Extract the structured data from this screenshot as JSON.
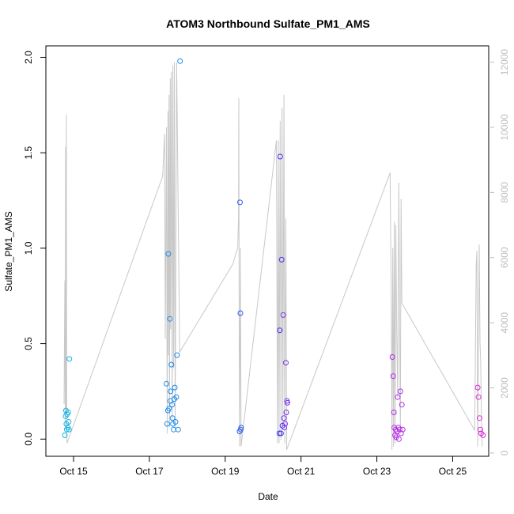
{
  "chart_data": {
    "type": "scatter",
    "title": "ATOM3 Northbound Sulfate_PM1_AMS",
    "xlabel": "Date",
    "ylabel": "Sulfate_PM1_AMS",
    "x_ticks": [
      "Oct 15",
      "Oct 17",
      "Oct 19",
      "Oct 21",
      "Oct 23",
      "Oct 25"
    ],
    "y_ticks": [
      "0.0",
      "0.5",
      "1.0",
      "1.5",
      "2.0"
    ],
    "y2_ticks": [
      "0",
      "2000",
      "4000",
      "6000",
      "8000",
      "10000",
      "12000"
    ],
    "xlim_days": [
      14.27,
      25.95
    ],
    "ylim": [
      -0.09,
      2.06
    ],
    "y2lim": [
      -100,
      12500
    ],
    "grid": false,
    "legend": "none",
    "colors": {
      "points": [
        "#17b3e6",
        "#1c8cec",
        "#2a5df0",
        "#4032ee",
        "#7a30ee",
        "#b42ee6",
        "#dc28d8"
      ],
      "altitude_line": "#c8c8c8",
      "right_axis": "#bdbdbd"
    },
    "series": [
      {
        "axis": "left",
        "points": [
          [
            14.77,
            0.02,
            0
          ],
          [
            14.79,
            0.12,
            0
          ],
          [
            14.8,
            0.15,
            0
          ],
          [
            14.81,
            0.08,
            0
          ],
          [
            14.82,
            0.05,
            0
          ],
          [
            14.83,
            0.13,
            0
          ],
          [
            14.85,
            0.06,
            0
          ],
          [
            14.86,
            0.14,
            0
          ],
          [
            14.87,
            0.09,
            0
          ],
          [
            14.88,
            0.05,
            0
          ],
          [
            14.89,
            0.42,
            0
          ],
          [
            17.45,
            0.29,
            1
          ],
          [
            17.47,
            0.08,
            1
          ],
          [
            17.49,
            0.15,
            1
          ],
          [
            17.5,
            0.97,
            1
          ],
          [
            17.52,
            0.16,
            1
          ],
          [
            17.54,
            0.63,
            1
          ],
          [
            17.55,
            0.2,
            1
          ],
          [
            17.56,
            0.25,
            1
          ],
          [
            17.58,
            0.39,
            1
          ],
          [
            17.6,
            0.18,
            1
          ],
          [
            17.61,
            0.11,
            1
          ],
          [
            17.62,
            0.08,
            1
          ],
          [
            17.64,
            0.05,
            1
          ],
          [
            17.66,
            0.21,
            1
          ],
          [
            17.67,
            0.27,
            1
          ],
          [
            17.69,
            0.09,
            1
          ],
          [
            17.71,
            0.22,
            1
          ],
          [
            17.73,
            0.44,
            1
          ],
          [
            17.76,
            0.05,
            1
          ],
          [
            17.81,
            1.98,
            1
          ],
          [
            19.38,
            0.04,
            2
          ],
          [
            19.39,
            1.24,
            2
          ],
          [
            19.4,
            0.66,
            2
          ],
          [
            19.41,
            0.05,
            2
          ],
          [
            19.42,
            0.06,
            2
          ],
          [
            20.43,
            0.03,
            3
          ],
          [
            20.44,
            0.57,
            3
          ],
          [
            20.45,
            1.48,
            3
          ],
          [
            20.47,
            0.03,
            3
          ],
          [
            20.49,
            0.94,
            3
          ],
          [
            20.51,
            0.07,
            3
          ],
          [
            20.53,
            0.65,
            4
          ],
          [
            20.55,
            0.11,
            4
          ],
          [
            20.56,
            0.06,
            4
          ],
          [
            20.58,
            0.08,
            4
          ],
          [
            20.6,
            0.4,
            4
          ],
          [
            20.61,
            0.14,
            4
          ],
          [
            20.63,
            0.2,
            4
          ],
          [
            20.64,
            0.19,
            4
          ],
          [
            23.41,
            0.43,
            5
          ],
          [
            23.43,
            0.33,
            5
          ],
          [
            23.45,
            0.14,
            5
          ],
          [
            23.46,
            0.06,
            5
          ],
          [
            23.48,
            0.02,
            5
          ],
          [
            23.5,
            0.05,
            5
          ],
          [
            23.51,
            0.01,
            5
          ],
          [
            23.53,
            0.04,
            5
          ],
          [
            23.55,
            0.22,
            5
          ],
          [
            23.57,
            0.06,
            5
          ],
          [
            23.58,
            0.0,
            5
          ],
          [
            23.6,
            0.05,
            5
          ],
          [
            23.62,
            0.25,
            5
          ],
          [
            23.64,
            0.03,
            5
          ],
          [
            23.66,
            0.18,
            5
          ],
          [
            23.68,
            0.05,
            5
          ],
          [
            25.66,
            0.27,
            6
          ],
          [
            25.68,
            0.22,
            6
          ],
          [
            25.71,
            0.11,
            6
          ],
          [
            25.73,
            0.05,
            6
          ],
          [
            25.75,
            0.03,
            6
          ],
          [
            25.8,
            0.02,
            6
          ]
        ]
      },
      {
        "axis": "right",
        "line": [
          [
            14.75,
            1500
          ],
          [
            14.77,
            5300
          ],
          [
            14.78,
            800
          ],
          [
            14.79,
            9400
          ],
          [
            14.8,
            1200
          ],
          [
            14.81,
            10400
          ],
          [
            14.82,
            500
          ],
          [
            14.83,
            300
          ],
          [
            17.35,
            8500
          ],
          [
            17.4,
            9800
          ],
          [
            17.42,
            3500
          ],
          [
            17.45,
            10000
          ],
          [
            17.47,
            600
          ],
          [
            17.49,
            10500
          ],
          [
            17.5,
            3000
          ],
          [
            17.52,
            11000
          ],
          [
            17.53,
            800
          ],
          [
            17.55,
            11500
          ],
          [
            17.56,
            3800
          ],
          [
            17.58,
            11700
          ],
          [
            17.6,
            1000
          ],
          [
            17.62,
            11900
          ],
          [
            17.64,
            2600
          ],
          [
            17.66,
            12000
          ],
          [
            17.68,
            700
          ],
          [
            17.72,
            12000
          ],
          [
            17.8,
            3100
          ],
          [
            19.2,
            5800
          ],
          [
            19.33,
            6300
          ],
          [
            19.35,
            7200
          ],
          [
            19.36,
            10900
          ],
          [
            19.37,
            3200
          ],
          [
            19.38,
            200
          ],
          [
            19.4,
            6300
          ],
          [
            19.42,
            200
          ],
          [
            20.35,
            9600
          ],
          [
            20.38,
            300
          ],
          [
            20.4,
            9600
          ],
          [
            20.42,
            300
          ],
          [
            20.45,
            10200
          ],
          [
            20.47,
            400
          ],
          [
            20.5,
            10600
          ],
          [
            20.52,
            800
          ],
          [
            20.55,
            11000
          ],
          [
            20.57,
            300
          ],
          [
            20.6,
            7200
          ],
          [
            20.62,
            100
          ],
          [
            23.35,
            8600
          ],
          [
            23.38,
            4700
          ],
          [
            23.4,
            100
          ],
          [
            23.42,
            6300
          ],
          [
            23.44,
            200
          ],
          [
            23.46,
            7100
          ],
          [
            23.48,
            300
          ],
          [
            23.5,
            7000
          ],
          [
            23.52,
            4200
          ],
          [
            23.55,
            1700
          ],
          [
            23.58,
            8300
          ],
          [
            23.6,
            4400
          ],
          [
            23.62,
            600
          ],
          [
            23.64,
            7800
          ],
          [
            23.66,
            4600
          ],
          [
            25.58,
            700
          ],
          [
            25.62,
            5800
          ],
          [
            25.64,
            6200
          ],
          [
            25.66,
            200
          ],
          [
            25.7,
            6400
          ],
          [
            25.72,
            3400
          ],
          [
            25.74,
            2800
          ],
          [
            25.76,
            1000
          ],
          [
            25.78,
            200
          ]
        ]
      }
    ]
  }
}
